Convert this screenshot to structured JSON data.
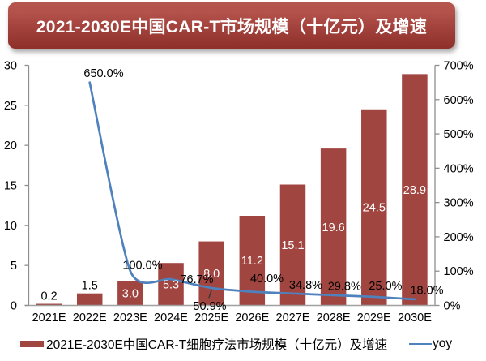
{
  "title": {
    "text": "2021-2030E中国CAR-T市场规模（十亿元）及增速"
  },
  "colors": {
    "bar": "#a14541",
    "line": "#4f81bd",
    "axis": "#8f8f8f",
    "x_axis": "#a0a0a0",
    "banner_top": "#b5564f",
    "banner_bottom": "#8e2f2a",
    "bar_label_inside": "#ffffff",
    "text": "#000000"
  },
  "chart_data": {
    "type": "combo",
    "title": "2021-2030E中国CAR-T市场规模（十亿元）及增速",
    "categories": [
      "2021E",
      "2022E",
      "2023E",
      "2024E",
      "2025E",
      "2026E",
      "2027E",
      "2028E",
      "2029E",
      "2030E"
    ],
    "series": [
      {
        "name": "2021E-2030E中国CAR-T细胞疗法市场规模（十亿元）及增速",
        "type": "bar",
        "axis": "left",
        "values": [
          0.2,
          1.5,
          3.0,
          5.3,
          8.0,
          11.2,
          15.1,
          19.6,
          24.5,
          28.9
        ],
        "labels": [
          "0.2",
          "1.5",
          "3.0",
          "5.3",
          "8.0",
          "11.2",
          "15.1",
          "19.6",
          "24.5",
          "28.9"
        ],
        "label_placement": [
          "outside",
          "outside",
          "center",
          "center",
          "center",
          "center",
          "center",
          "center",
          "center",
          "center"
        ]
      },
      {
        "name": "yoy",
        "type": "line",
        "axis": "right",
        "smooth": true,
        "values": [
          null,
          650.0,
          100.0,
          76.7,
          50.9,
          40.0,
          34.8,
          29.8,
          25.0,
          18.0
        ],
        "labels": [
          null,
          "650.0%",
          "100.0%",
          "76.7%",
          "50.9%",
          "40.0%",
          "34.8%",
          "29.8%",
          "25.0%",
          "18.0%"
        ],
        "label_offsets": [
          null,
          [
            17.3,
            -11.7
          ],
          [
            15.1,
            -7.6
          ],
          [
            32,
            -0.1
          ],
          [
            -2.2,
            22
          ],
          [
            18.2,
            -16.6
          ],
          [
            16,
            -10.8
          ],
          [
            13.7,
            -11.6
          ],
          [
            14.2,
            -14
          ],
          [
            15.1,
            -11.4
          ]
        ],
        "leader_line_at": 4
      }
    ],
    "left_axis": {
      "min": 0,
      "max": 30,
      "step": 5,
      "tick_labels": [
        "0",
        "5",
        "10",
        "15",
        "20",
        "25",
        "30"
      ]
    },
    "right_axis": {
      "min": 0,
      "max": 700,
      "step": 100,
      "tick_labels": [
        "0%",
        "100%",
        "200%",
        "300%",
        "400%",
        "500%",
        "600%",
        "700%"
      ]
    },
    "grid": false,
    "legend_position": "bottom"
  },
  "legend": {
    "bar_label": "2021E-2030E中国CAR-T细胞疗法市场规模（十亿元）及增速",
    "line_label": "yoy"
  }
}
